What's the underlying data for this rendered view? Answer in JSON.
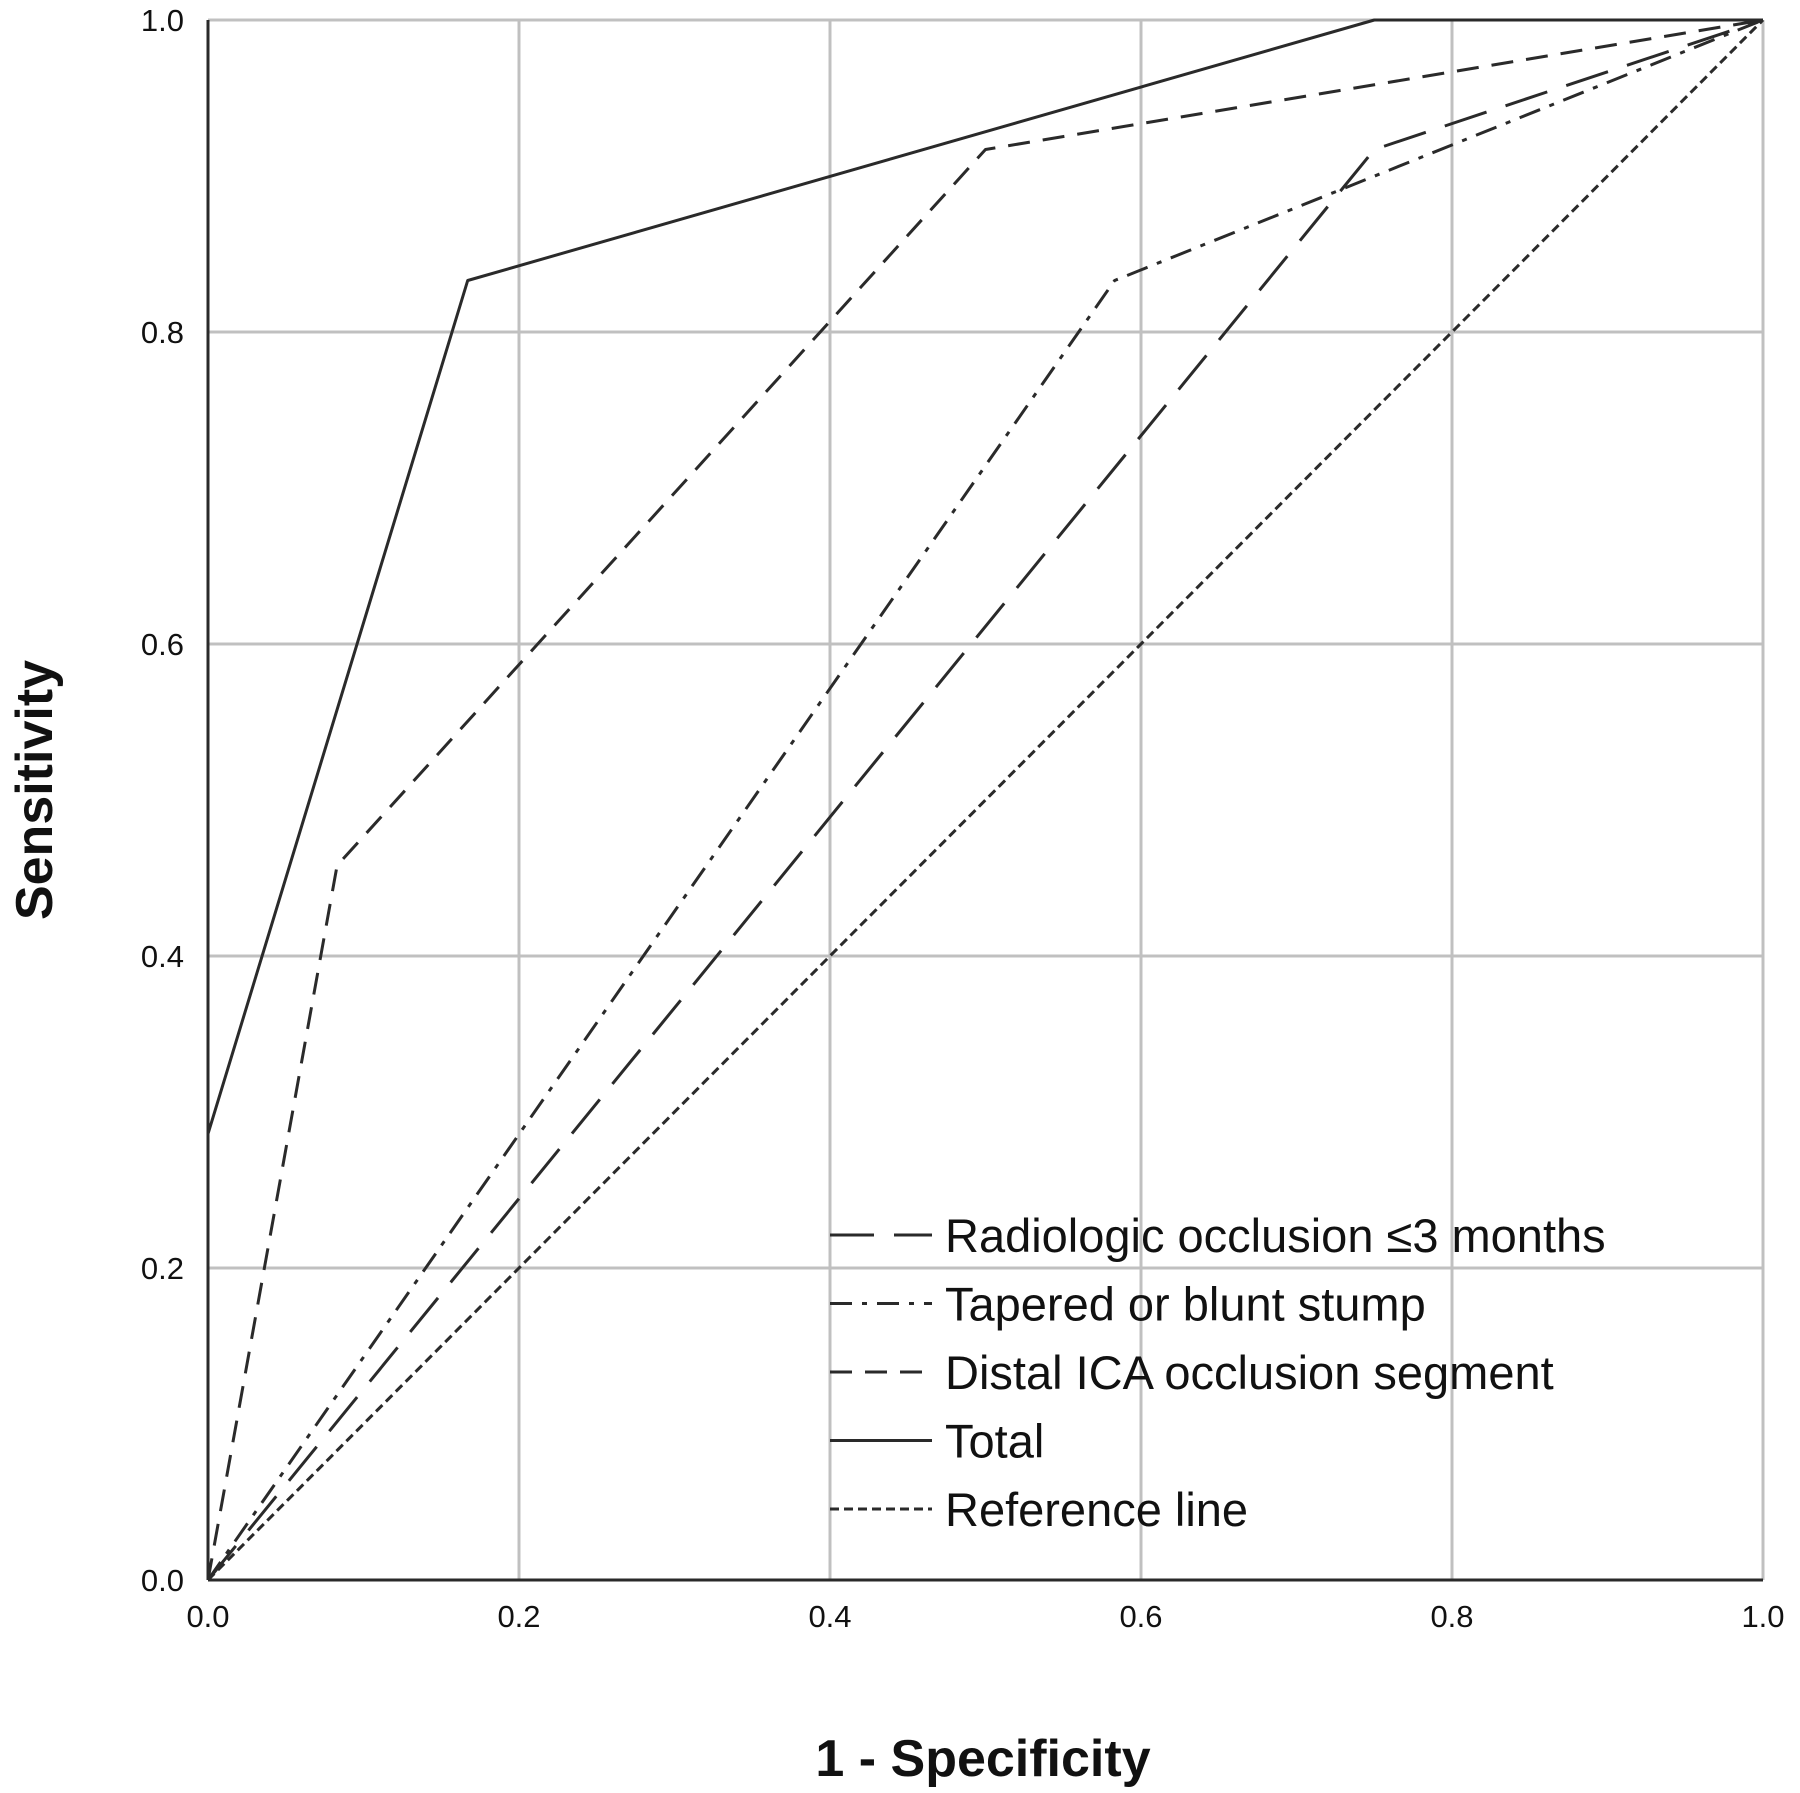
{
  "chart_data": {
    "type": "line",
    "xlabel": "1 - Specificity",
    "ylabel": "Sensitivity",
    "xlim": [
      0,
      1
    ],
    "ylim": [
      0,
      1
    ],
    "grid": true,
    "legend_position": "bottom-right",
    "x_ticks": [
      "0.0",
      "0.2",
      "0.4",
      "0.6",
      "0.8",
      "1.0"
    ],
    "y_ticks": [
      "0.0",
      "0.2",
      "0.4",
      "0.6",
      "0.8",
      "1.0"
    ],
    "series": [
      {
        "name": "Radiologic occlusion ≤3 months",
        "line_style": "long-dash",
        "x": [
          0,
          0.75,
          1.0
        ],
        "y": [
          0,
          0.917,
          1.0
        ]
      },
      {
        "name": "Tapered or blunt stump",
        "line_style": "dash-dot",
        "x": [
          0,
          0.583,
          1.0
        ],
        "y": [
          0,
          0.833,
          1.0
        ]
      },
      {
        "name": "Distal ICA occlusion segment",
        "line_style": "medium-dash",
        "x": [
          0,
          0.083,
          0.5,
          1.0
        ],
        "y": [
          0,
          0.458,
          0.917,
          1.0
        ]
      },
      {
        "name": "Total",
        "line_style": "solid",
        "x": [
          0,
          0,
          0.167,
          0.75,
          1.0
        ],
        "y": [
          0,
          0.286,
          0.833,
          1.0,
          1.0
        ]
      },
      {
        "name": "Reference line",
        "line_style": "short-dash",
        "x": [
          0,
          1.0
        ],
        "y": [
          0,
          1.0
        ]
      }
    ]
  },
  "colors": {
    "line": "#2a2a2a",
    "grid": "#c0c0c0",
    "background": "#ffffff"
  }
}
